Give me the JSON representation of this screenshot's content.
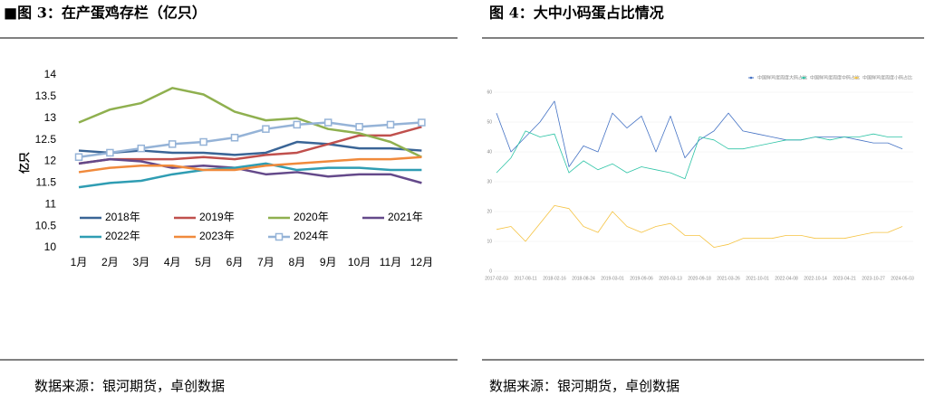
{
  "chart_data": [
    {
      "type": "line",
      "title": "■图 3：在产蛋鸡存栏（亿只）",
      "ylabel": "亿只",
      "categories": [
        "1月",
        "2月",
        "3月",
        "4月",
        "5月",
        "6月",
        "7月",
        "8月",
        "9月",
        "10月",
        "11月",
        "12月"
      ],
      "ylim": [
        10,
        14
      ],
      "yticks": [
        10,
        10.5,
        11,
        11.5,
        12,
        12.5,
        13,
        13.5,
        14
      ],
      "series": [
        {
          "name": "2018年",
          "color": "#3a6596",
          "values": [
            12.25,
            12.2,
            12.25,
            12.2,
            12.2,
            12.15,
            12.2,
            12.45,
            12.4,
            12.3,
            12.3,
            12.25
          ]
        },
        {
          "name": "2019年",
          "color": "#c0504d",
          "values": [
            11.95,
            12.05,
            12.05,
            12.05,
            12.1,
            12.05,
            12.15,
            12.2,
            12.4,
            12.6,
            12.6,
            12.8
          ]
        },
        {
          "name": "2020年",
          "color": "#8fb04f",
          "values": [
            12.9,
            13.2,
            13.35,
            13.7,
            13.55,
            13.15,
            12.95,
            13.0,
            12.75,
            12.65,
            12.45,
            12.1
          ]
        },
        {
          "name": "2021年",
          "color": "#64498a",
          "values": [
            11.95,
            12.05,
            12.0,
            11.85,
            11.9,
            11.85,
            11.7,
            11.75,
            11.65,
            11.7,
            11.7,
            11.5
          ]
        },
        {
          "name": "2022年",
          "color": "#2f9db3",
          "values": [
            11.4,
            11.5,
            11.55,
            11.7,
            11.8,
            11.85,
            11.95,
            11.8,
            11.85,
            11.85,
            11.8,
            11.8
          ]
        },
        {
          "name": "2023年",
          "color": "#f08a3c",
          "values": [
            11.75,
            11.85,
            11.9,
            11.9,
            11.8,
            11.8,
            11.9,
            11.95,
            12.0,
            12.05,
            12.05,
            12.1
          ]
        },
        {
          "name": "2024年",
          "color": "#95b3d7",
          "marker": "square",
          "values": [
            12.1,
            12.2,
            12.3,
            12.4,
            12.45,
            12.55,
            12.75,
            12.85,
            12.9,
            12.8,
            12.85,
            12.9
          ]
        }
      ]
    },
    {
      "type": "line",
      "title": "图 4：大中小码蛋占比情况",
      "categories": [
        "2017-02-03",
        null,
        "2017-08-11",
        null,
        "2018-02-16",
        null,
        "2018-08-24",
        null,
        "2019-03-01",
        null,
        "2019-09-06",
        null,
        "2020-03-13",
        null,
        "2020-09-18",
        null,
        "2021-03-26",
        null,
        "2021-10-01",
        null,
        "2022-04-08",
        null,
        "2022-10-14",
        null,
        "2023-04-21",
        null,
        "2023-10-27",
        null,
        "2024-05-03"
      ],
      "ylim": [
        0,
        60
      ],
      "yticks": [
        0,
        10,
        20,
        30,
        40,
        50,
        60
      ],
      "series": [
        {
          "name": "中国鲜鸡蛋周度大码占比",
          "color": "#4472c4",
          "values": [
            53,
            40,
            45,
            50,
            57,
            35,
            42,
            40,
            53,
            48,
            52,
            40,
            52,
            38,
            44,
            47,
            53,
            47,
            46,
            45,
            44,
            44,
            45,
            45,
            45,
            44,
            43,
            43,
            41
          ]
        },
        {
          "name": "中国鲜鸡蛋周度中码占比",
          "color": "#2ec4a6",
          "values": [
            33,
            38,
            47,
            45,
            46,
            33,
            37,
            34,
            36,
            33,
            35,
            34,
            33,
            31,
            45,
            44,
            41,
            41,
            42,
            43,
            44,
            44,
            45,
            44,
            45,
            45,
            46,
            45,
            45
          ]
        },
        {
          "name": "中国鲜鸡蛋周度小码占比",
          "color": "#f5c342",
          "values": [
            14,
            15,
            10,
            16,
            22,
            21,
            15,
            13,
            20,
            15,
            13,
            15,
            16,
            12,
            12,
            8,
            9,
            11,
            11,
            11,
            12,
            12,
            11,
            11,
            11,
            12,
            13,
            13,
            15
          ]
        }
      ]
    }
  ],
  "sources": [
    "数据来源：银河期货，卓创数据",
    "数据来源：银河期货，卓创数据"
  ]
}
